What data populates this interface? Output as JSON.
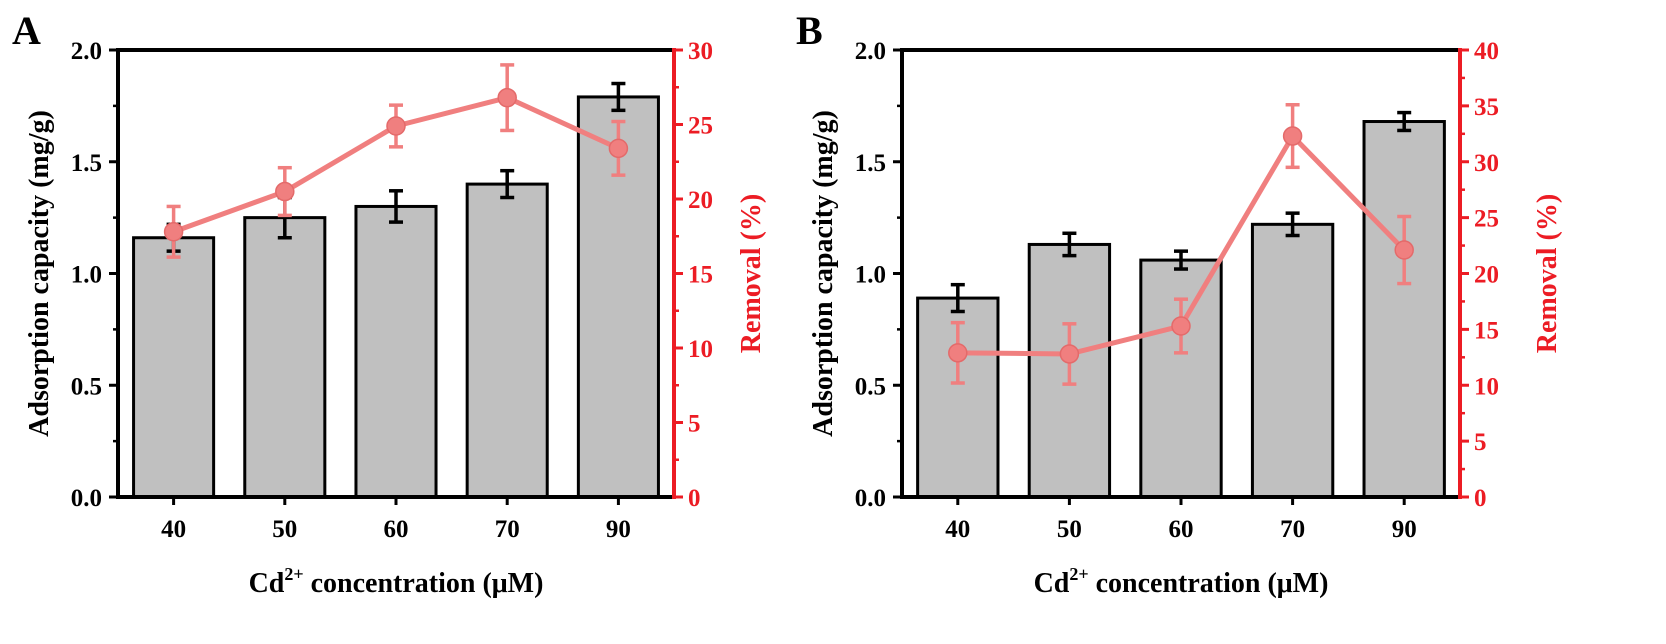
{
  "colors": {
    "bar_fill": "#c0c0c0",
    "bar_stroke": "#000000",
    "axis": "#000000",
    "removal": "#ec1c24",
    "removal_line": "#f07f7f"
  },
  "chart_data": [
    {
      "type": "bar",
      "panel_label": "A",
      "categories": [
        "40",
        "50",
        "60",
        "70",
        "90"
      ],
      "xlabel_main": "Cd",
      "xlabel_sup": "2+",
      "xlabel_rest": " concentration (μM)",
      "ylabel": "Adsorption capacity (mg/g)",
      "ylim": [
        0,
        2.0
      ],
      "yticks": [
        "0.0",
        "0.5",
        "1.0",
        "1.5",
        "2.0"
      ],
      "values": [
        1.16,
        1.25,
        1.3,
        1.4,
        1.79
      ],
      "errors": [
        0.06,
        0.09,
        0.07,
        0.06,
        0.06
      ],
      "y2label": "Removal (%)",
      "y2lim": [
        0,
        30
      ],
      "y2ticks": [
        "0",
        "5",
        "10",
        "15",
        "20",
        "25",
        "30"
      ],
      "removal": [
        17.8,
        20.5,
        24.9,
        26.8,
        23.4
      ],
      "removal_errors": [
        1.7,
        1.6,
        1.4,
        2.2,
        1.8
      ]
    },
    {
      "type": "bar",
      "panel_label": "B",
      "categories": [
        "40",
        "50",
        "60",
        "70",
        "90"
      ],
      "xlabel_main": "Cd",
      "xlabel_sup": "2+",
      "xlabel_rest": " concentration (μM)",
      "ylabel": "Adsorption capacity (mg/g)",
      "ylim": [
        0,
        2.0
      ],
      "yticks": [
        "0.0",
        "0.5",
        "1.0",
        "1.5",
        "2.0"
      ],
      "values": [
        0.89,
        1.13,
        1.06,
        1.22,
        1.68
      ],
      "errors": [
        0.06,
        0.05,
        0.04,
        0.05,
        0.04
      ],
      "y2label": "Removal (%)",
      "y2lim": [
        0,
        40
      ],
      "y2ticks": [
        "0",
        "5",
        "10",
        "15",
        "20",
        "25",
        "30",
        "35",
        "40"
      ],
      "removal": [
        12.9,
        12.8,
        15.3,
        32.3,
        22.1
      ],
      "removal_errors": [
        2.7,
        2.7,
        2.4,
        2.8,
        3.0
      ]
    }
  ]
}
